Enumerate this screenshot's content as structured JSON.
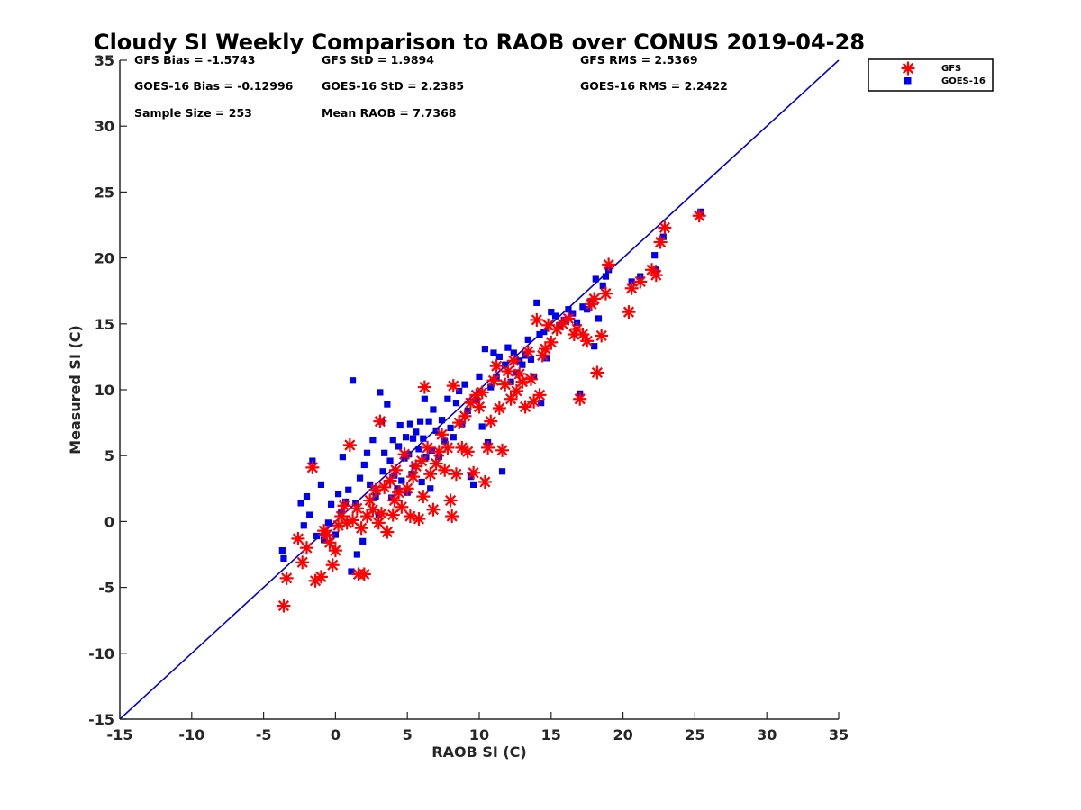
{
  "chart_data": {
    "type": "scatter",
    "title": "Cloudy SI Weekly Comparison to RAOB over CONUS 2019-04-28",
    "xlabel": "RAOB SI (C)",
    "ylabel": "Measured SI (C)",
    "xlim": [
      -15,
      35
    ],
    "ylim": [
      -15,
      35
    ],
    "xticks": [
      "-15",
      "-10",
      "-5",
      "0",
      "5",
      "10",
      "15",
      "20",
      "25",
      "30",
      "35"
    ],
    "yticks": [
      "-15",
      "-10",
      "-5",
      "0",
      "5",
      "10",
      "15",
      "20",
      "25",
      "30",
      "35"
    ],
    "grid": false,
    "legend_position": "top-right",
    "reference_line": {
      "from": [
        -15,
        -15
      ],
      "to": [
        35,
        35
      ],
      "color": "#0000dd"
    },
    "stats": [
      "GFS Bias = -1.5743",
      "GFS StD = 1.9894",
      "GFS RMS = 2.5369",
      "GOES-16 Bias = -0.12996",
      "GOES-16 StD = 2.2385",
      "GOES-16 RMS = 2.2422",
      "Sample Size = 253",
      "Mean RAOB = 7.7368"
    ],
    "series": [
      {
        "name": "GFS",
        "marker": "asterisk",
        "color": "#ff0000",
        "points": [
          [
            -3.6,
            -6.4
          ],
          [
            -3.4,
            -4.3
          ],
          [
            -2.6,
            -1.3
          ],
          [
            -2.3,
            -3.1
          ],
          [
            -2.0,
            -2.0
          ],
          [
            -1.6,
            4.1
          ],
          [
            -1.4,
            -4.5
          ],
          [
            -1.0,
            -4.2
          ],
          [
            -0.8,
            -0.7
          ],
          [
            -0.6,
            -1.0
          ],
          [
            -0.4,
            -1.6
          ],
          [
            -0.2,
            -3.3
          ],
          [
            0.0,
            -2.2
          ],
          [
            0.2,
            -0.3
          ],
          [
            0.4,
            0.4
          ],
          [
            0.6,
            1.2
          ],
          [
            0.8,
            -0.1
          ],
          [
            1.0,
            5.8
          ],
          [
            1.2,
            0.1
          ],
          [
            1.5,
            1.0
          ],
          [
            1.6,
            -4.0
          ],
          [
            1.8,
            -0.5
          ],
          [
            2.0,
            -4.0
          ],
          [
            2.2,
            0.4
          ],
          [
            2.4,
            1.6
          ],
          [
            2.6,
            0.9
          ],
          [
            2.8,
            2.4
          ],
          [
            3.0,
            -0.1
          ],
          [
            3.1,
            7.6
          ],
          [
            3.2,
            0.6
          ],
          [
            3.4,
            2.6
          ],
          [
            3.6,
            -0.8
          ],
          [
            3.8,
            3.1
          ],
          [
            4.0,
            0.5
          ],
          [
            4.1,
            1.6
          ],
          [
            4.2,
            3.9
          ],
          [
            4.4,
            2.2
          ],
          [
            4.6,
            1.1
          ],
          [
            4.8,
            5.1
          ],
          [
            5.0,
            2.5
          ],
          [
            5.2,
            0.4
          ],
          [
            5.4,
            3.4
          ],
          [
            5.6,
            4.2
          ],
          [
            5.8,
            0.2
          ],
          [
            6.0,
            4.6
          ],
          [
            6.1,
            1.9
          ],
          [
            6.2,
            10.2
          ],
          [
            6.4,
            5.6
          ],
          [
            6.6,
            3.6
          ],
          [
            6.8,
            0.9
          ],
          [
            7.0,
            4.4
          ],
          [
            7.2,
            5.3
          ],
          [
            7.4,
            6.6
          ],
          [
            7.6,
            3.9
          ],
          [
            7.8,
            5.6
          ],
          [
            8.0,
            1.6
          ],
          [
            8.1,
            0.4
          ],
          [
            8.2,
            10.3
          ],
          [
            8.4,
            3.6
          ],
          [
            8.6,
            7.5
          ],
          [
            8.8,
            5.6
          ],
          [
            9.0,
            8.0
          ],
          [
            9.2,
            5.3
          ],
          [
            9.4,
            9.0
          ],
          [
            9.6,
            3.7
          ],
          [
            9.8,
            9.6
          ],
          [
            10.0,
            8.7
          ],
          [
            10.2,
            9.8
          ],
          [
            10.4,
            3.0
          ],
          [
            10.6,
            5.6
          ],
          [
            10.8,
            7.6
          ],
          [
            11.0,
            10.7
          ],
          [
            11.2,
            11.8
          ],
          [
            11.4,
            8.6
          ],
          [
            11.6,
            5.4
          ],
          [
            11.8,
            10.4
          ],
          [
            12.0,
            11.4
          ],
          [
            12.2,
            9.3
          ],
          [
            12.4,
            12.2
          ],
          [
            12.6,
            9.9
          ],
          [
            12.8,
            11.2
          ],
          [
            13.0,
            10.6
          ],
          [
            13.2,
            8.7
          ],
          [
            13.4,
            12.9
          ],
          [
            13.6,
            10.8
          ],
          [
            13.8,
            9.1
          ],
          [
            14.0,
            15.3
          ],
          [
            14.2,
            9.6
          ],
          [
            14.4,
            12.6
          ],
          [
            14.6,
            13.1
          ],
          [
            14.8,
            14.9
          ],
          [
            15.0,
            13.6
          ],
          [
            15.4,
            14.6
          ],
          [
            15.8,
            15.0
          ],
          [
            16.2,
            15.4
          ],
          [
            16.6,
            14.2
          ],
          [
            16.8,
            14.6
          ],
          [
            17.0,
            9.3
          ],
          [
            17.2,
            14.2
          ],
          [
            17.5,
            13.7
          ],
          [
            17.8,
            16.5
          ],
          [
            18.0,
            16.9
          ],
          [
            18.2,
            11.3
          ],
          [
            18.5,
            14.1
          ],
          [
            18.8,
            17.3
          ],
          [
            19.0,
            19.5
          ],
          [
            20.4,
            15.9
          ],
          [
            20.6,
            17.7
          ],
          [
            21.2,
            18.2
          ],
          [
            22.0,
            19.1
          ],
          [
            22.3,
            18.7
          ],
          [
            22.6,
            21.2
          ],
          [
            22.9,
            22.3
          ],
          [
            25.3,
            23.2
          ]
        ]
      },
      {
        "name": "GOES-16",
        "marker": "square",
        "color": "#0000ee",
        "points": [
          [
            -3.7,
            -2.2
          ],
          [
            -3.6,
            -2.8
          ],
          [
            -2.4,
            1.4
          ],
          [
            -2.2,
            -0.3
          ],
          [
            -2.0,
            1.9
          ],
          [
            -1.8,
            0.5
          ],
          [
            -1.6,
            4.6
          ],
          [
            -1.3,
            -1.1
          ],
          [
            -1.0,
            2.8
          ],
          [
            -0.8,
            -1.4
          ],
          [
            -0.5,
            -0.1
          ],
          [
            -0.3,
            1.3
          ],
          [
            0.0,
            -1.0
          ],
          [
            0.2,
            2.1
          ],
          [
            0.4,
            0.7
          ],
          [
            0.5,
            4.9
          ],
          [
            0.7,
            1.5
          ],
          [
            0.9,
            2.4
          ],
          [
            1.1,
            -3.8
          ],
          [
            1.2,
            10.7
          ],
          [
            1.4,
            1.4
          ],
          [
            1.5,
            -2.5
          ],
          [
            1.7,
            3.3
          ],
          [
            1.9,
            -1.5
          ],
          [
            2.0,
            4.3
          ],
          [
            2.2,
            5.2
          ],
          [
            2.4,
            2.8
          ],
          [
            2.6,
            6.2
          ],
          [
            2.8,
            1.9
          ],
          [
            3.0,
            0.5
          ],
          [
            3.1,
            9.8
          ],
          [
            3.2,
            7.6
          ],
          [
            3.3,
            3.8
          ],
          [
            3.4,
            5.2
          ],
          [
            3.6,
            8.9
          ],
          [
            3.8,
            4.6
          ],
          [
            3.9,
            1.8
          ],
          [
            4.0,
            6.2
          ],
          [
            4.1,
            3.5
          ],
          [
            4.3,
            2.5
          ],
          [
            4.4,
            5.7
          ],
          [
            4.5,
            7.3
          ],
          [
            4.6,
            3.1
          ],
          [
            4.8,
            4.8
          ],
          [
            4.9,
            6.4
          ],
          [
            5.0,
            2.2
          ],
          [
            5.1,
            5.1
          ],
          [
            5.2,
            7.4
          ],
          [
            5.3,
            3.6
          ],
          [
            5.4,
            6.3
          ],
          [
            5.5,
            4.2
          ],
          [
            5.6,
            6.8
          ],
          [
            5.8,
            5.5
          ],
          [
            5.9,
            7.6
          ],
          [
            6.0,
            3.0
          ],
          [
            6.1,
            6.3
          ],
          [
            6.2,
            9.3
          ],
          [
            6.3,
            4.9
          ],
          [
            6.5,
            7.6
          ],
          [
            6.6,
            2.5
          ],
          [
            6.7,
            5.4
          ],
          [
            6.8,
            8.5
          ],
          [
            7.0,
            6.9
          ],
          [
            7.2,
            4.9
          ],
          [
            7.4,
            7.7
          ],
          [
            7.6,
            6.1
          ],
          [
            7.8,
            9.3
          ],
          [
            8.0,
            7.1
          ],
          [
            8.2,
            6.4
          ],
          [
            8.4,
            9.0
          ],
          [
            8.6,
            9.9
          ],
          [
            8.8,
            7.4
          ],
          [
            9.0,
            10.4
          ],
          [
            9.2,
            8.4
          ],
          [
            9.4,
            3.4
          ],
          [
            9.6,
            2.8
          ],
          [
            9.8,
            9.2
          ],
          [
            10.0,
            11.0
          ],
          [
            10.2,
            7.2
          ],
          [
            10.4,
            13.1
          ],
          [
            10.6,
            6.0
          ],
          [
            10.8,
            10.2
          ],
          [
            11.0,
            12.8
          ],
          [
            11.2,
            11.0
          ],
          [
            11.4,
            12.5
          ],
          [
            11.6,
            3.8
          ],
          [
            11.8,
            11.9
          ],
          [
            12.0,
            13.2
          ],
          [
            12.2,
            10.6
          ],
          [
            12.4,
            12.8
          ],
          [
            12.6,
            11.3
          ],
          [
            12.8,
            12.2
          ],
          [
            13.0,
            11.9
          ],
          [
            13.2,
            12.6
          ],
          [
            13.4,
            13.8
          ],
          [
            13.6,
            12.3
          ],
          [
            13.8,
            11.0
          ],
          [
            14.0,
            16.6
          ],
          [
            14.2,
            14.2
          ],
          [
            14.3,
            9.0
          ],
          [
            14.5,
            14.4
          ],
          [
            14.7,
            12.4
          ],
          [
            15.0,
            15.9
          ],
          [
            15.3,
            15.6
          ],
          [
            15.6,
            14.9
          ],
          [
            15.9,
            15.3
          ],
          [
            16.2,
            16.1
          ],
          [
            16.5,
            15.8
          ],
          [
            16.8,
            15.1
          ],
          [
            17.0,
            9.7
          ],
          [
            17.2,
            16.3
          ],
          [
            17.5,
            16.1
          ],
          [
            17.8,
            16.6
          ],
          [
            18.0,
            13.3
          ],
          [
            18.1,
            18.4
          ],
          [
            18.3,
            15.4
          ],
          [
            18.6,
            17.9
          ],
          [
            18.8,
            18.6
          ],
          [
            19.0,
            19.1
          ],
          [
            20.6,
            18.2
          ],
          [
            21.2,
            18.6
          ],
          [
            22.2,
            20.2
          ],
          [
            22.3,
            19.1
          ],
          [
            22.8,
            21.6
          ],
          [
            25.4,
            23.5
          ]
        ]
      }
    ]
  }
}
